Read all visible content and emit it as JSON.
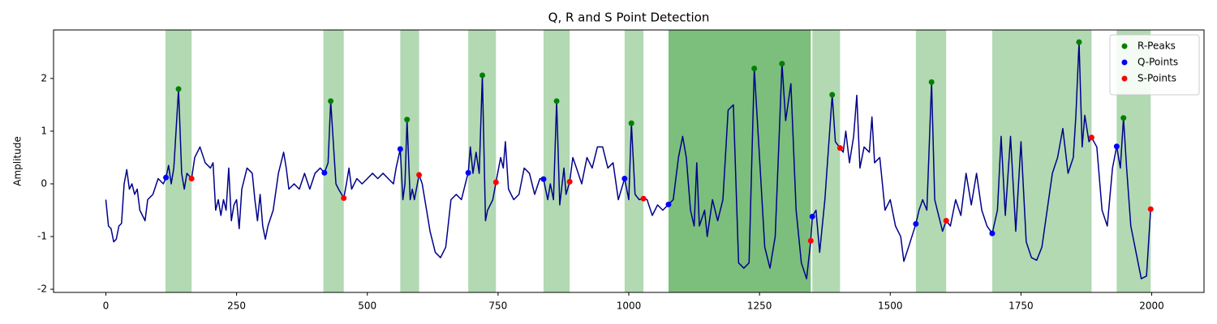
{
  "chart_data": {
    "type": "line",
    "title": "Q, R and S Point Detection",
    "y_label": "Amplitude",
    "xlim": [
      -100,
      2100
    ],
    "ylim": [
      -2.06,
      2.92
    ],
    "xticks": [
      0,
      250,
      500,
      750,
      1000,
      1250,
      1500,
      1750,
      2000
    ],
    "yticks": [
      -2,
      -1,
      0,
      1,
      2
    ],
    "grid": false,
    "legend": "upper right",
    "span_color": "#008000",
    "spans": [
      [
        114,
        164
      ],
      [
        416,
        455
      ],
      [
        563,
        599
      ],
      [
        693,
        746
      ],
      [
        837,
        887
      ],
      [
        992,
        1028
      ],
      [
        1076,
        1348
      ],
      [
        1076,
        1348
      ],
      [
        1351,
        1404
      ],
      [
        1549,
        1607
      ],
      [
        1695,
        1885
      ],
      [
        1933,
        1998
      ]
    ],
    "series": [
      {
        "color": "#00008b",
        "x": [
          0,
          5,
          10,
          15,
          20,
          25,
          30,
          35,
          40,
          45,
          50,
          55,
          60,
          65,
          70,
          75,
          80,
          90,
          100,
          110,
          115,
          120,
          125,
          130,
          139,
          145,
          150,
          155,
          164,
          170,
          180,
          190,
          200,
          205,
          210,
          215,
          220,
          225,
          230,
          235,
          240,
          245,
          250,
          255,
          260,
          270,
          280,
          285,
          290,
          295,
          300,
          305,
          310,
          320,
          330,
          340,
          345,
          350,
          360,
          370,
          380,
          390,
          400,
          410,
          418,
          425,
          430,
          440,
          445,
          455,
          460,
          465,
          470,
          480,
          490,
          500,
          510,
          520,
          530,
          540,
          550,
          555,
          563,
          568,
          572,
          576,
          582,
          586,
          590,
          599,
          605,
          610,
          620,
          630,
          640,
          650,
          660,
          670,
          680,
          690,
          693,
          697,
          702,
          708,
          714,
          720,
          726,
          730,
          740,
          746,
          755,
          760,
          764,
          770,
          780,
          790,
          800,
          810,
          820,
          830,
          837,
          845,
          850,
          856,
          862,
          868,
          876,
          880,
          887,
          893,
          900,
          910,
          920,
          930,
          940,
          950,
          960,
          970,
          980,
          992,
          1000,
          1005,
          1012,
          1020,
          1028,
          1035,
          1045,
          1055,
          1065,
          1076,
          1085,
          1095,
          1103,
          1110,
          1118,
          1125,
          1130,
          1135,
          1145,
          1150,
          1160,
          1170,
          1180,
          1190,
          1200,
          1210,
          1220,
          1230,
          1240,
          1250,
          1260,
          1270,
          1280,
          1293,
          1300,
          1310,
          1320,
          1330,
          1340,
          1348,
          1351,
          1358,
          1365,
          1375,
          1389,
          1395,
          1404,
          1410,
          1415,
          1422,
          1430,
          1436,
          1442,
          1450,
          1460,
          1465,
          1470,
          1480,
          1490,
          1500,
          1510,
          1520,
          1526,
          1535,
          1549,
          1555,
          1562,
          1570,
          1579,
          1585,
          1590,
          1600,
          1607,
          1615,
          1625,
          1635,
          1645,
          1655,
          1665,
          1675,
          1685,
          1695,
          1705,
          1712,
          1720,
          1730,
          1740,
          1750,
          1760,
          1770,
          1780,
          1790,
          1800,
          1810,
          1820,
          1830,
          1840,
          1850,
          1855,
          1861,
          1867,
          1872,
          1880,
          1885,
          1895,
          1905,
          1915,
          1925,
          1933,
          1940,
          1946,
          1952,
          1960,
          1970,
          1980,
          1990,
          1998
        ],
        "values": [
          -0.3,
          -0.8,
          -0.85,
          -1.1,
          -1.05,
          -0.8,
          -0.75,
          0.0,
          0.27,
          -0.1,
          0.0,
          -0.2,
          -0.1,
          -0.5,
          -0.6,
          -0.7,
          -0.3,
          -0.2,
          0.1,
          0.0,
          0.12,
          0.35,
          0.0,
          0.3,
          1.8,
          0.2,
          -0.1,
          0.2,
          0.1,
          0.5,
          0.7,
          0.4,
          0.3,
          0.4,
          -0.5,
          -0.3,
          -0.6,
          -0.3,
          -0.5,
          0.3,
          -0.7,
          -0.4,
          -0.3,
          -0.85,
          -0.1,
          0.3,
          0.2,
          -0.3,
          -0.7,
          -0.2,
          -0.8,
          -1.05,
          -0.8,
          -0.5,
          0.2,
          0.6,
          0.3,
          -0.1,
          0.0,
          -0.1,
          0.2,
          -0.1,
          0.2,
          0.3,
          0.21,
          0.4,
          1.57,
          0.0,
          -0.1,
          -0.27,
          0.0,
          0.3,
          -0.1,
          0.1,
          0.0,
          0.1,
          0.2,
          0.1,
          0.2,
          0.1,
          0.0,
          0.3,
          0.66,
          -0.3,
          0.0,
          1.22,
          -0.3,
          -0.1,
          -0.3,
          0.17,
          0.0,
          -0.3,
          -0.9,
          -1.3,
          -1.4,
          -1.2,
          -0.3,
          -0.2,
          -0.3,
          0.1,
          0.21,
          0.7,
          0.2,
          0.6,
          0.2,
          2.06,
          -0.7,
          -0.5,
          -0.3,
          0.03,
          0.5,
          0.3,
          0.8,
          -0.1,
          -0.3,
          -0.2,
          0.3,
          0.2,
          -0.2,
          0.1,
          0.09,
          -0.3,
          0.0,
          -0.3,
          1.57,
          -0.4,
          0.3,
          -0.2,
          0.04,
          0.5,
          0.3,
          0.0,
          0.5,
          0.3,
          0.7,
          0.7,
          0.3,
          0.4,
          -0.3,
          0.1,
          -0.3,
          1.15,
          -0.2,
          -0.3,
          -0.28,
          -0.3,
          -0.6,
          -0.4,
          -0.5,
          -0.39,
          -0.3,
          0.5,
          0.9,
          0.5,
          -0.5,
          -0.8,
          0.4,
          -0.8,
          -0.5,
          -1.0,
          -0.3,
          -0.7,
          -0.3,
          1.4,
          1.5,
          -1.5,
          -1.6,
          -1.5,
          2.19,
          0.5,
          -1.2,
          -1.6,
          -1.0,
          2.28,
          1.2,
          1.9,
          -0.5,
          -1.5,
          -1.8,
          -1.08,
          -0.62,
          -0.5,
          -1.3,
          -0.3,
          1.69,
          0.8,
          0.68,
          0.6,
          1.0,
          0.4,
          0.9,
          1.68,
          0.3,
          0.7,
          0.6,
          1.27,
          0.4,
          0.5,
          -0.5,
          -0.3,
          -0.8,
          -1.0,
          -1.47,
          -1.2,
          -0.76,
          -0.5,
          -0.3,
          -0.5,
          1.93,
          -0.3,
          -0.5,
          -0.9,
          -0.7,
          -0.8,
          -0.3,
          -0.6,
          0.2,
          -0.4,
          0.2,
          -0.5,
          -0.8,
          -0.94,
          -0.5,
          0.9,
          -0.6,
          0.9,
          -0.9,
          0.8,
          -1.1,
          -1.4,
          -1.45,
          -1.2,
          -0.5,
          0.2,
          0.5,
          1.05,
          0.2,
          0.5,
          1.3,
          2.69,
          0.7,
          1.3,
          0.8,
          0.88,
          0.7,
          -0.5,
          -0.8,
          0.3,
          0.71,
          0.3,
          1.25,
          0.3,
          -0.8,
          -1.3,
          -1.8,
          -1.75,
          -0.48
        ]
      },
      {
        "name": "R-Peaks",
        "color": "#008000",
        "marker": true,
        "x": [
          139,
          430,
          576,
          720,
          862,
          1005,
          1240,
          1293,
          1389,
          1579,
          1861,
          1946
        ],
        "values": [
          1.8,
          1.57,
          1.22,
          2.06,
          1.57,
          1.15,
          2.19,
          2.28,
          1.69,
          1.93,
          2.69,
          1.25
        ]
      },
      {
        "name": "Q-Points",
        "color": "#0000ff",
        "marker": true,
        "x": [
          115,
          418,
          563,
          693,
          837,
          992,
          1076,
          1351,
          1549,
          1695,
          1933
        ],
        "values": [
          0.12,
          0.21,
          0.66,
          0.21,
          0.09,
          0.1,
          -0.39,
          -0.62,
          -0.76,
          -0.94,
          0.71
        ]
      },
      {
        "name": "S-Points",
        "color": "#ff0000",
        "marker": true,
        "x": [
          164,
          455,
          599,
          746,
          887,
          1028,
          1348,
          1404,
          1607,
          1885,
          1998
        ],
        "values": [
          0.1,
          -0.27,
          0.17,
          0.03,
          0.04,
          -0.28,
          -1.08,
          0.68,
          -0.7,
          0.88,
          -0.48
        ]
      }
    ]
  }
}
